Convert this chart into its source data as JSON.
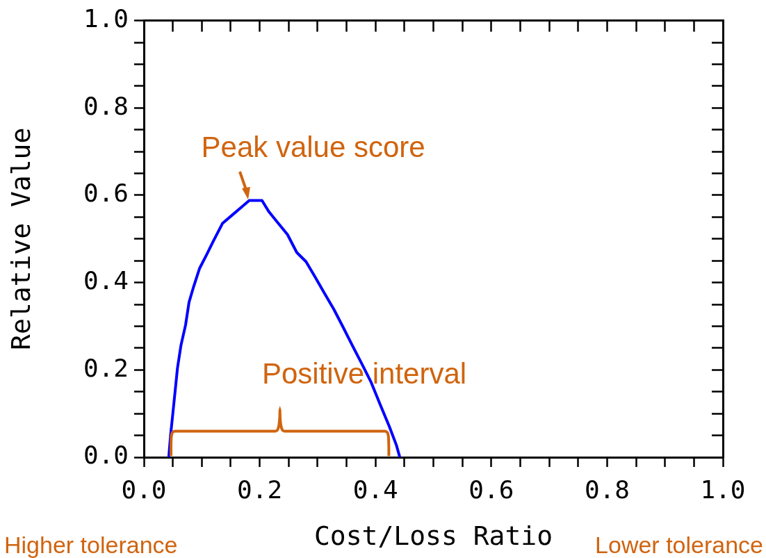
{
  "chart_data": {
    "type": "line",
    "xlabel": "Cost/Loss Ratio",
    "ylabel": "Relative Value",
    "x": [
      0.043,
      0.046,
      0.05,
      0.054,
      0.058,
      0.064,
      0.072,
      0.078,
      0.086,
      0.096,
      0.108,
      0.12,
      0.136,
      0.152,
      0.168,
      0.182,
      0.204,
      0.216,
      0.232,
      0.248,
      0.264,
      0.28,
      0.296,
      0.312,
      0.328,
      0.344,
      0.36,
      0.376,
      0.392,
      0.408,
      0.424,
      0.436,
      0.442
    ],
    "series": [
      {
        "color": "#0000ff",
        "values": [
          0.0,
          0.049,
          0.1,
          0.152,
          0.204,
          0.256,
          0.303,
          0.355,
          0.391,
          0.432,
          0.463,
          0.495,
          0.536,
          0.554,
          0.572,
          0.588,
          0.588,
          0.562,
          0.536,
          0.51,
          0.469,
          0.448,
          0.412,
          0.375,
          0.339,
          0.298,
          0.256,
          0.215,
          0.173,
          0.121,
          0.07,
          0.028,
          0.0
        ]
      }
    ],
    "xlim": [
      0,
      1
    ],
    "ylim": [
      0,
      1
    ],
    "xticks": [
      {
        "value": 0,
        "label": "0.0"
      },
      {
        "value": 0.05,
        "label": null
      },
      {
        "value": 0.1,
        "label": null
      },
      {
        "value": 0.15,
        "label": null
      },
      {
        "value": 0.2,
        "label": "0.2"
      },
      {
        "value": 0.25,
        "label": null
      },
      {
        "value": 0.3,
        "label": null
      },
      {
        "value": 0.35,
        "label": null
      },
      {
        "value": 0.4,
        "label": "0.4"
      },
      {
        "value": 0.45,
        "label": null
      },
      {
        "value": 0.5,
        "label": null
      },
      {
        "value": 0.55,
        "label": null
      },
      {
        "value": 0.6,
        "label": "0.6"
      },
      {
        "value": 0.65,
        "label": null
      },
      {
        "value": 0.7,
        "label": null
      },
      {
        "value": 0.75,
        "label": null
      },
      {
        "value": 0.8,
        "label": "0.8"
      },
      {
        "value": 0.85,
        "label": null
      },
      {
        "value": 0.9,
        "label": null
      },
      {
        "value": 0.95,
        "label": null
      },
      {
        "value": 1,
        "label": "1.0"
      }
    ],
    "yticks": [
      {
        "value": 0,
        "label": "0.0"
      },
      {
        "value": 0.05,
        "label": null
      },
      {
        "value": 0.1,
        "label": null
      },
      {
        "value": 0.15,
        "label": null
      },
      {
        "value": 0.2,
        "label": "0.2"
      },
      {
        "value": 0.25,
        "label": null
      },
      {
        "value": 0.3,
        "label": null
      },
      {
        "value": 0.35,
        "label": null
      },
      {
        "value": 0.4,
        "label": "0.4"
      },
      {
        "value": 0.45,
        "label": null
      },
      {
        "value": 0.5,
        "label": null
      },
      {
        "value": 0.55,
        "label": null
      },
      {
        "value": 0.6,
        "label": "0.6"
      },
      {
        "value": 0.65,
        "label": null
      },
      {
        "value": 0.7,
        "label": null
      },
      {
        "value": 0.75,
        "label": null
      },
      {
        "value": 0.8,
        "label": "0.8"
      },
      {
        "value": 0.85,
        "label": null
      },
      {
        "value": 0.9,
        "label": null
      },
      {
        "value": 0.95,
        "label": null
      },
      {
        "value": 1,
        "label": "1.0"
      }
    ],
    "grid": false,
    "legend": false,
    "marker": "none",
    "line_style": "solid",
    "annotations": [
      {
        "text": "Peak value score",
        "x": 0.182,
        "y": 0.588
      },
      "Positive interval",
      "Higher tolerance",
      "Lower tolerance"
    ]
  }
}
